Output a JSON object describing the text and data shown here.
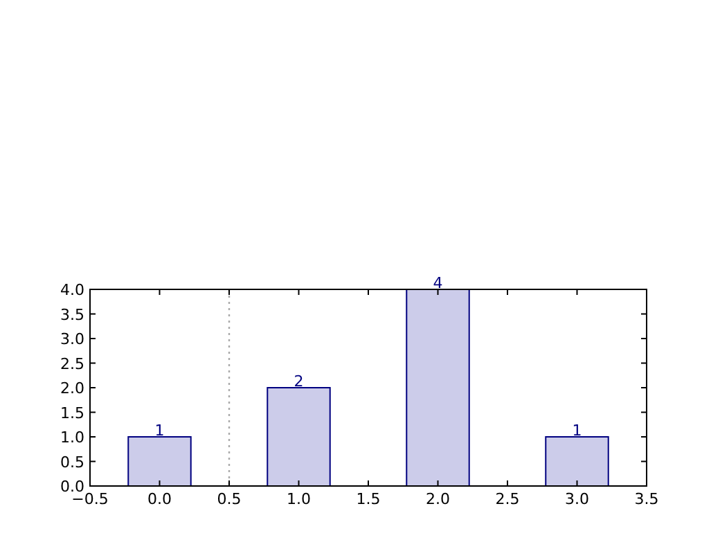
{
  "chart_data": {
    "type": "bar",
    "x": [
      0,
      1,
      2,
      3
    ],
    "values": [
      1,
      2,
      4,
      1
    ],
    "color": "#ccccea",
    "xlim": [
      -0.5,
      3.5
    ],
    "xticks": [
      {
        "value": -0.5,
        "label": "−0.5"
      },
      {
        "value": 0,
        "label": "0.0"
      },
      {
        "value": 0.5,
        "label": "0.5"
      },
      {
        "value": 1,
        "label": "1.0"
      },
      {
        "value": 1.5,
        "label": "1.5"
      },
      {
        "value": 2,
        "label": "2.0"
      },
      {
        "value": 2.5,
        "label": "2.5"
      },
      {
        "value": 3,
        "label": "3.0"
      },
      {
        "value": 3.5,
        "label": "3.5"
      }
    ],
    "ylim": [
      0,
      4
    ],
    "yticks": [
      {
        "value": 0,
        "label": "0.0"
      },
      {
        "value": 0.5,
        "label": "0.5"
      },
      {
        "value": 1,
        "label": "1.0"
      },
      {
        "value": 1.5,
        "label": "1.5"
      },
      {
        "value": 2,
        "label": "2.0"
      },
      {
        "value": 2.5,
        "label": "2.5"
      },
      {
        "value": 3,
        "label": "3.0"
      },
      {
        "value": 3.5,
        "label": "3.5"
      },
      {
        "value": 4,
        "label": "4.0"
      }
    ],
    "data_labels": true,
    "ref_lines": [
      {
        "axis": "x",
        "value": 0.5,
        "color": "#aaaaaa",
        "line_style": "dotted"
      }
    ]
  }
}
